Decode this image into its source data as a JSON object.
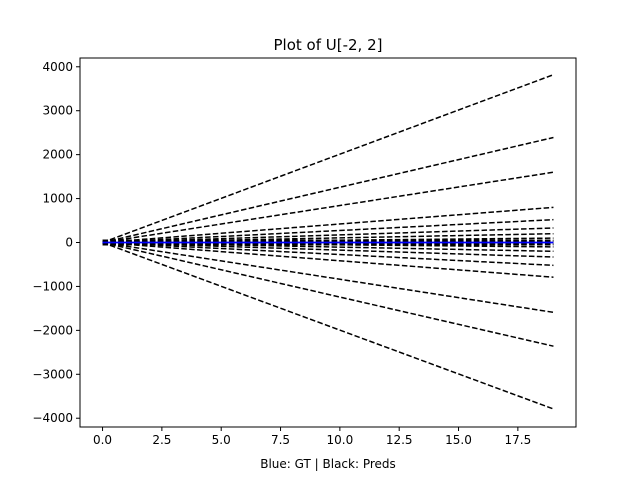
{
  "chart_data": {
    "type": "line",
    "title": "Plot of U[-2, 2]",
    "xlabel": "Blue: GT | Black: Preds",
    "ylabel": "",
    "xlim": [
      -0.95,
      19.95
    ],
    "ylim": [
      -4200,
      4200
    ],
    "x_ticks": [
      0.0,
      2.5,
      5.0,
      7.5,
      10.0,
      12.5,
      15.0,
      17.5
    ],
    "x_tick_labels": [
      "0.0",
      "2.5",
      "5.0",
      "7.5",
      "10.0",
      "12.5",
      "15.0",
      "17.5"
    ],
    "y_ticks": [
      -4000,
      -3000,
      -2000,
      -1000,
      0,
      1000,
      2000,
      3000,
      4000
    ],
    "y_tick_labels": [
      "−4000",
      "−3000",
      "−2000",
      "−1000",
      "0",
      "1000",
      "2000",
      "3000",
      "4000"
    ],
    "x_range": [
      0,
      19
    ],
    "grid": false,
    "prediction_line_style": "dashed",
    "colors": {
      "predictions": "#000000",
      "ground_truth": "#0000ff"
    },
    "series": [
      {
        "values_at": [
          0,
          19
        ],
        "values": [
          0,
          3820
        ]
      },
      {
        "values_at": [
          0,
          19
        ],
        "values": [
          0,
          2390
        ]
      },
      {
        "values_at": [
          0,
          19
        ],
        "values": [
          0,
          1600
        ]
      },
      {
        "values_at": [
          0,
          19
        ],
        "values": [
          0,
          800
        ]
      },
      {
        "values_at": [
          0,
          19
        ],
        "values": [
          0,
          520
        ]
      },
      {
        "values_at": [
          0,
          19
        ],
        "values": [
          0,
          330
        ]
      },
      {
        "values_at": [
          0,
          19
        ],
        "values": [
          0,
          200
        ]
      },
      {
        "values_at": [
          0,
          19
        ],
        "values": [
          0,
          100
        ]
      },
      {
        "values_at": [
          0,
          19
        ],
        "values": [
          0,
          40
        ]
      },
      {
        "values_at": [
          0,
          19
        ],
        "values": [
          0,
          -40
        ]
      },
      {
        "values_at": [
          0,
          19
        ],
        "values": [
          0,
          -100
        ]
      },
      {
        "values_at": [
          0,
          19
        ],
        "values": [
          0,
          -200
        ]
      },
      {
        "values_at": [
          0,
          19
        ],
        "values": [
          0,
          -330
        ]
      },
      {
        "values_at": [
          0,
          19
        ],
        "values": [
          0,
          -520
        ]
      },
      {
        "values_at": [
          0,
          19
        ],
        "values": [
          0,
          -790
        ]
      },
      {
        "values_at": [
          0,
          19
        ],
        "values": [
          0,
          -1590
        ]
      },
      {
        "values_at": [
          0,
          19
        ],
        "values": [
          0,
          -2360
        ]
      },
      {
        "values_at": [
          0,
          19
        ],
        "values": [
          0,
          -3790
        ]
      }
    ],
    "ground_truth": {
      "values_at": [
        0,
        19
      ],
      "values": [
        0,
        0
      ]
    }
  }
}
